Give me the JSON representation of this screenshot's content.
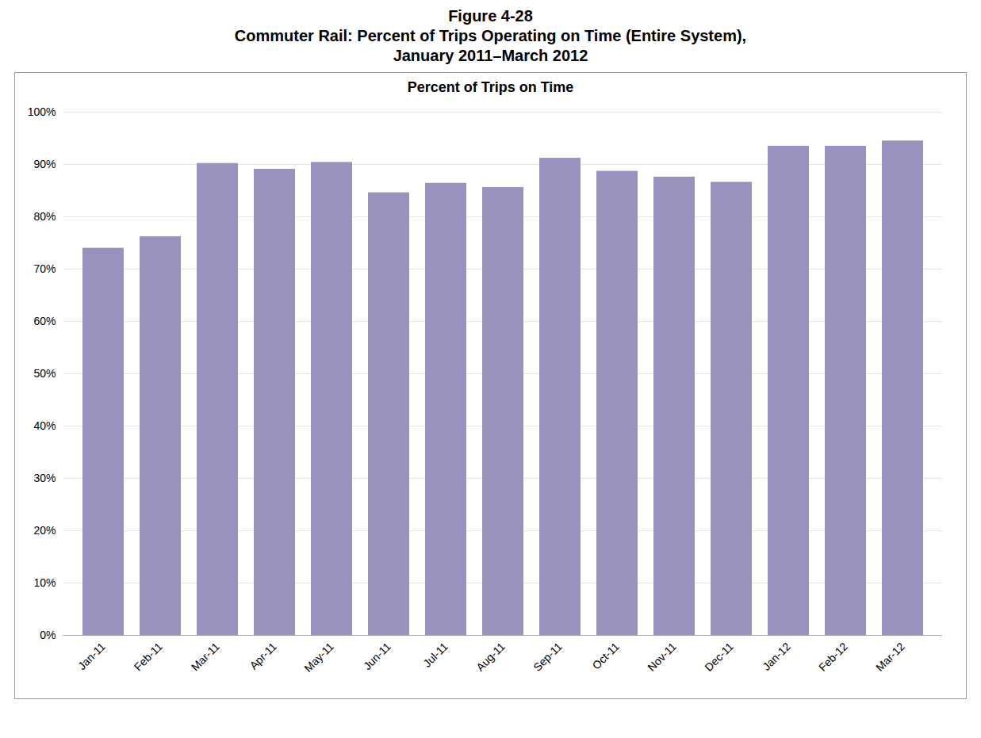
{
  "chart_data": {
    "type": "bar",
    "title": [
      "Figure 4-28",
      "Commuter Rail: Percent of Trips Operating on Time (Entire System),",
      "January 2011–March 2012"
    ],
    "subtitle": "Percent of Trips on Time",
    "categories": [
      "Jan-11",
      "Feb-11",
      "Mar-11",
      "Apr-11",
      "May-11",
      "Jun-11",
      "Jul-11",
      "Aug-11",
      "Sep-11",
      "Oct-11",
      "Nov-11",
      "Dec-11",
      "Jan-12",
      "Feb-12",
      "Mar-12"
    ],
    "values": [
      0.74,
      0.762,
      0.902,
      0.891,
      0.904,
      0.846,
      0.864,
      0.856,
      0.912,
      0.887,
      0.876,
      0.866,
      0.935,
      0.935,
      0.945
    ],
    "color": "#9B91BE",
    "ylim": [
      0,
      1.0
    ],
    "yticks": [
      {
        "value": 0,
        "label": "0%"
      },
      {
        "value": 0.1,
        "label": "10%"
      },
      {
        "value": 0.2,
        "label": "20%"
      },
      {
        "value": 0.3,
        "label": "30%"
      },
      {
        "value": 0.4,
        "label": "40%"
      },
      {
        "value": 0.5,
        "label": "50%"
      },
      {
        "value": 0.6,
        "label": "60%"
      },
      {
        "value": 0.7,
        "label": "70%"
      },
      {
        "value": 0.8,
        "label": "80%"
      },
      {
        "value": 0.9,
        "label": "90%"
      },
      {
        "value": 1.0,
        "label": "100%"
      }
    ],
    "grid": true
  }
}
